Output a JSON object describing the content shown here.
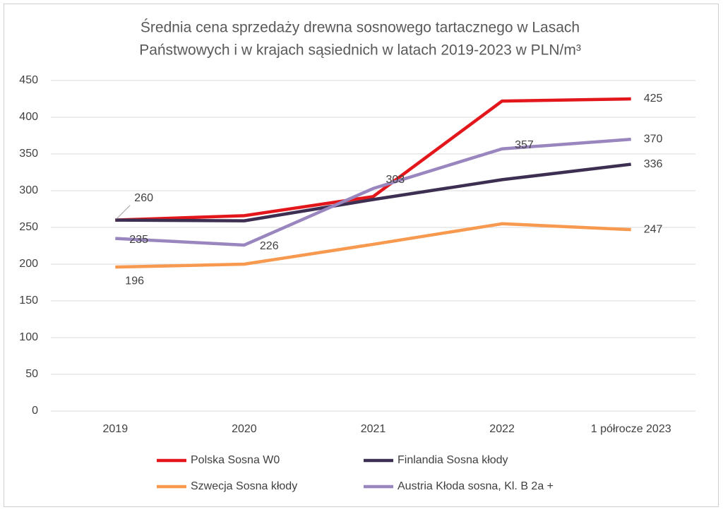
{
  "chart_data": {
    "type": "line",
    "title": [
      "Średnia cena sprzedaży drewna sosnowego tartacznego w Lasach",
      "Państwowych i w krajach sąsiednich w latach 2019-2023 w PLN/m³"
    ],
    "categories": [
      "2019",
      "2020",
      "2021",
      "2022",
      "1 półrocze 2023"
    ],
    "series": [
      {
        "name": "Polska Sosna W0",
        "color": "#e3161b",
        "values": [
          260,
          266,
          292,
          422,
          425
        ],
        "labeled_points": [
          0,
          4
        ]
      },
      {
        "name": "Finlandia Sosna kłody",
        "color": "#3d2f52",
        "values": [
          260,
          259,
          288,
          315,
          336
        ],
        "labeled_points": [
          4
        ]
      },
      {
        "name": "Szwecja Sosna kłody",
        "color": "#f79a4f",
        "values": [
          196,
          200,
          227,
          255,
          247
        ],
        "labeled_points": [
          0,
          4
        ]
      },
      {
        "name": "Austria Kłoda sosna, Kl. B 2a +",
        "color": "#9a86bf",
        "values": [
          235,
          226,
          303,
          357,
          370
        ],
        "labeled_points": [
          0,
          1,
          2,
          3,
          4
        ]
      }
    ],
    "ylim": [
      0,
      450
    ],
    "yticks": [
      0,
      50,
      100,
      150,
      200,
      250,
      300,
      350,
      400,
      450
    ],
    "grid": true
  }
}
